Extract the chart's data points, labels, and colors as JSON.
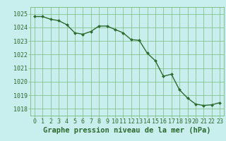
{
  "x": [
    0,
    1,
    2,
    3,
    4,
    5,
    6,
    7,
    8,
    9,
    10,
    11,
    12,
    13,
    14,
    15,
    16,
    17,
    18,
    19,
    20,
    21,
    22,
    23
  ],
  "y": [
    1024.8,
    1024.8,
    1024.6,
    1024.5,
    1024.2,
    1023.6,
    1023.5,
    1023.7,
    1024.1,
    1024.1,
    1023.85,
    1023.6,
    1023.1,
    1023.05,
    1022.1,
    1021.55,
    1020.4,
    1020.55,
    1019.4,
    1018.8,
    1018.35,
    1018.25,
    1018.3,
    1018.45
  ],
  "line_color": "#2d6a2d",
  "marker": "D",
  "marker_size": 2,
  "line_width": 1.0,
  "bg_color": "#c8eeee",
  "grid_color": "#7ab87a",
  "xlabel": "Graphe pression niveau de la mer (hPa)",
  "xlabel_color": "#2d6a2d",
  "xlabel_fontsize": 7.5,
  "tick_color": "#2d6a2d",
  "tick_fontsize": 6,
  "ylim": [
    1017.5,
    1025.5
  ],
  "yticks": [
    1018,
    1019,
    1020,
    1021,
    1022,
    1023,
    1024,
    1025
  ],
  "xticks": [
    0,
    1,
    2,
    3,
    4,
    5,
    6,
    7,
    8,
    9,
    10,
    11,
    12,
    13,
    14,
    15,
    16,
    17,
    18,
    19,
    20,
    21,
    22,
    23
  ]
}
